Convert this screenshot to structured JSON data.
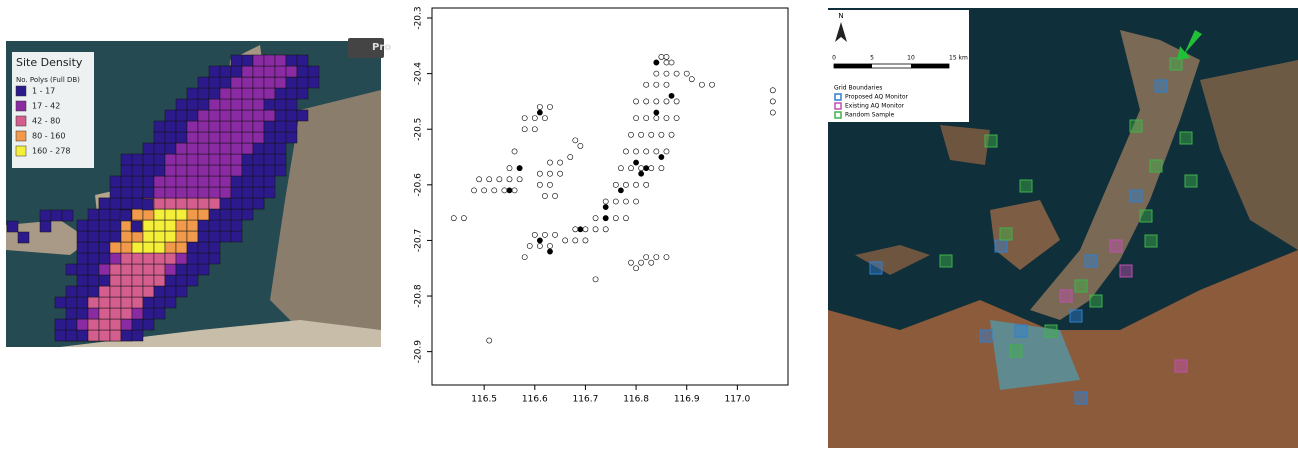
{
  "left_map": {
    "button": "Pro",
    "legend": {
      "title": "Site Density",
      "subtitle": "No. Polys (Full DB)",
      "items": [
        {
          "label": "1 - 17",
          "color": "#2c1a8c"
        },
        {
          "label": "17 - 42",
          "color": "#8a2ba3"
        },
        {
          "label": "42 - 80",
          "color": "#d45f8f"
        },
        {
          "label": "80 - 160",
          "color": "#f29a4b"
        },
        {
          "label": "160 - 278",
          "color": "#f5ef3a"
        }
      ]
    }
  },
  "chart_data": {
    "type": "scatter",
    "xlim": [
      116.397,
      117.1
    ],
    "ylim": [
      -20.96,
      -20.282
    ],
    "xticks": [
      116.5,
      116.6,
      116.7,
      116.8,
      116.9,
      {
        "value": 117,
        "label": "117.0"
      }
    ],
    "yticks": [
      -20.3,
      -20.4,
      -20.5,
      -20.6,
      -20.7,
      -20.8,
      -20.9
    ],
    "series": [
      {
        "color": "#000000",
        "filled": false,
        "x": [
          116.85,
          116.86,
          116.84,
          116.86,
          116.87,
          116.84,
          116.86,
          116.88,
          116.9,
          116.91,
          116.82,
          116.84,
          116.86,
          116.93,
          116.95,
          116.8,
          116.82,
          116.84,
          116.86,
          116.88,
          116.8,
          116.82,
          116.84,
          116.86,
          116.88,
          116.79,
          116.81,
          116.83,
          116.85,
          116.87,
          116.78,
          116.8,
          116.82,
          116.84,
          116.86,
          116.77,
          116.79,
          116.81,
          116.83,
          116.85,
          116.76,
          116.78,
          116.8,
          116.82,
          116.74,
          116.76,
          116.78,
          116.8,
          116.72,
          116.74,
          116.76,
          116.78,
          116.68,
          116.7,
          116.72,
          116.74,
          116.66,
          116.68,
          116.7,
          117.07,
          117.07,
          117.07,
          116.49,
          116.51,
          116.53,
          116.55,
          116.57,
          116.48,
          116.5,
          116.52,
          116.54,
          116.56,
          116.55,
          116.57,
          116.61,
          116.63,
          116.58,
          116.6,
          116.62,
          116.58,
          116.6,
          116.63,
          116.65,
          116.61,
          116.63,
          116.65,
          116.61,
          116.63,
          116.62,
          116.64,
          116.68,
          116.69,
          116.67,
          116.6,
          116.62,
          116.64,
          116.59,
          116.61,
          116.63,
          116.58,
          116.82,
          116.84,
          116.86,
          116.79,
          116.81,
          116.83,
          116.8,
          116.44,
          116.46,
          116.51,
          116.72,
          116.56
        ],
        "y": [
          -20.37,
          -20.37,
          -20.38,
          -20.38,
          -20.38,
          -20.4,
          -20.4,
          -20.4,
          -20.4,
          -20.41,
          -20.42,
          -20.42,
          -20.42,
          -20.42,
          -20.42,
          -20.45,
          -20.45,
          -20.45,
          -20.45,
          -20.45,
          -20.48,
          -20.48,
          -20.48,
          -20.48,
          -20.48,
          -20.51,
          -20.51,
          -20.51,
          -20.51,
          -20.51,
          -20.54,
          -20.54,
          -20.54,
          -20.54,
          -20.54,
          -20.57,
          -20.57,
          -20.57,
          -20.57,
          -20.57,
          -20.6,
          -20.6,
          -20.6,
          -20.6,
          -20.63,
          -20.63,
          -20.63,
          -20.63,
          -20.66,
          -20.66,
          -20.66,
          -20.66,
          -20.68,
          -20.68,
          -20.68,
          -20.68,
          -20.7,
          -20.7,
          -20.7,
          -20.43,
          -20.45,
          -20.47,
          -20.59,
          -20.59,
          -20.59,
          -20.59,
          -20.59,
          -20.61,
          -20.61,
          -20.61,
          -20.61,
          -20.61,
          -20.57,
          -20.57,
          -20.46,
          -20.46,
          -20.48,
          -20.48,
          -20.48,
          -20.5,
          -20.5,
          -20.56,
          -20.56,
          -20.58,
          -20.58,
          -20.58,
          -20.6,
          -20.6,
          -20.62,
          -20.62,
          -20.52,
          -20.53,
          -20.55,
          -20.69,
          -20.69,
          -20.69,
          -20.71,
          -20.71,
          -20.71,
          -20.73,
          -20.73,
          -20.73,
          -20.73,
          -20.74,
          -20.74,
          -20.74,
          -20.75,
          -20.66,
          -20.66,
          -20.88,
          -20.77,
          -20.54
        ]
      },
      {
        "color": "#000000",
        "filled": true,
        "x": [
          116.84,
          116.87,
          116.84,
          116.85,
          116.8,
          116.82,
          116.81,
          116.77,
          116.74,
          116.74,
          116.69,
          116.61,
          116.57,
          116.55,
          116.61,
          116.63
        ],
        "y": [
          -20.38,
          -20.44,
          -20.47,
          -20.55,
          -20.56,
          -20.57,
          -20.58,
          -20.61,
          -20.64,
          -20.66,
          -20.68,
          -20.47,
          -20.57,
          -20.61,
          -20.7,
          -20.72
        ]
      }
    ]
  },
  "right_map": {
    "north": "N",
    "scale_labels": [
      "0",
      "5",
      "10",
      "15 km"
    ],
    "legend": {
      "title": "Grid Boundaries",
      "items": [
        {
          "label": "Proposed AQ Monitor",
          "color": "#2f7fd0"
        },
        {
          "label": "Existing AQ Monitor",
          "color": "#c04fb0"
        },
        {
          "label": "Random Sample",
          "color": "#3fb24a"
        }
      ]
    }
  }
}
